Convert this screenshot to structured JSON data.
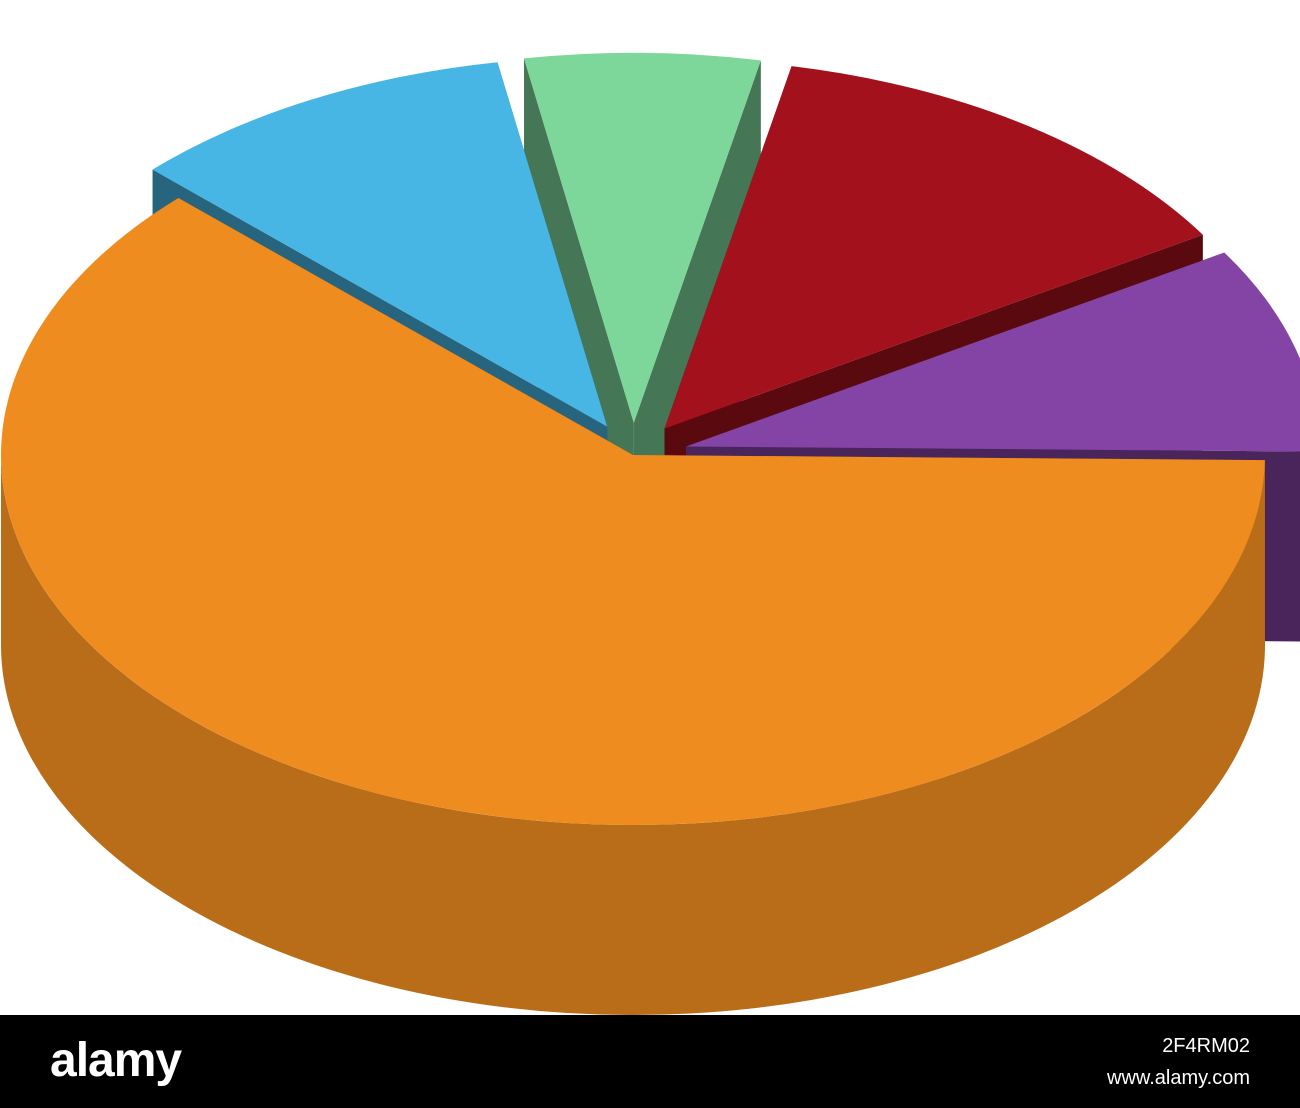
{
  "chart_data": {
    "type": "pie3d",
    "values": [
      10,
      6,
      13,
      9,
      62
    ],
    "colors": [
      "#47b6e4",
      "#7ed79a",
      "#a3111c",
      "#8444a6",
      "#ef8c20"
    ],
    "explode": [
      true,
      true,
      true,
      true,
      false
    ]
  },
  "footer": {
    "logo": "alamy",
    "image_id": "2F4RM02",
    "url": "www.alamy.com"
  }
}
